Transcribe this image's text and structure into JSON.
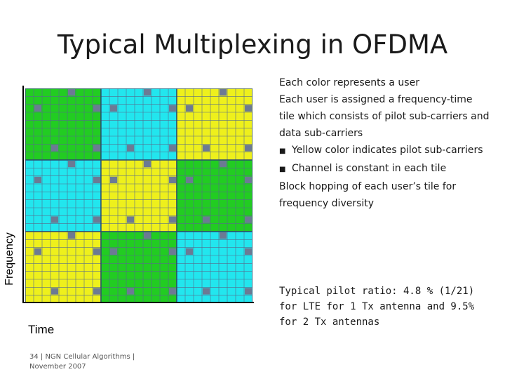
{
  "slide": {
    "title": "Typical Multiplexing in OFDMA",
    "bullets": {
      "line1": "Each color represents  a user",
      "line2": "Each user is assigned a frequency-time tile which consists of pilot sub-carriers and data sub-carriers",
      "sub1": "Yellow color indicates pilot sub-carriers",
      "sub2": "Channel is constant in each tile",
      "line3": "Block hopping of each user’s tile for frequency diversity"
    },
    "pilot_note": "Typical pilot ratio:  4.8 % (1/21) for LTE for 1 Tx antenna and 9.5% for 2 Tx antennas",
    "footer": "34 | NGN Cellular Algorithms | November 2007"
  },
  "diagram": {
    "y_axis_label": "Frequency",
    "x_axis_label": "Time",
    "colors": {
      "green": "#22cc22",
      "cyan": "#22e6ee",
      "yellow": "#eef01c",
      "pilot": "#6c7a94",
      "gridline": "#556b8d"
    },
    "tiles": [
      [
        "green",
        "cyan",
        "yellow"
      ],
      [
        "cyan",
        "yellow",
        "green"
      ],
      [
        "yellow",
        "green",
        "cyan"
      ]
    ]
  }
}
